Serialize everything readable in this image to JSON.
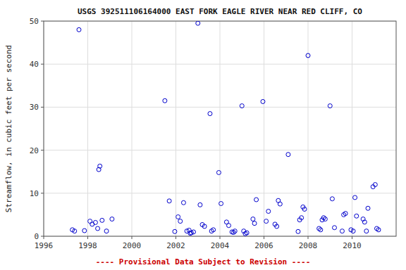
{
  "chart_data": {
    "type": "scatter",
    "title": "USGS 392511106164000 EAST FORK EAGLE RIVER NEAR RED CLIFF, CO",
    "y_label": "Streamflow, in cubic feet per second",
    "annotation": "---- Provisional Data Subject to Revision ----",
    "x": [
      1997.3,
      1997.4,
      1997.6,
      1997.85,
      1998.1,
      1998.2,
      1998.35,
      1998.45,
      1998.5,
      1998.55,
      1998.65,
      1998.85,
      1999.1,
      2001.5,
      2001.7,
      2001.95,
      2002.1,
      2002.2,
      2002.35,
      2002.5,
      2002.6,
      2002.65,
      2002.7,
      2002.8,
      2003.0,
      2003.1,
      2003.2,
      2003.3,
      2003.55,
      2003.62,
      2003.7,
      2003.95,
      2004.05,
      2004.3,
      2004.4,
      2004.55,
      2004.62,
      2004.68,
      2005.0,
      2005.08,
      2005.15,
      2005.22,
      2005.5,
      2005.57,
      2005.65,
      2005.95,
      2006.1,
      2006.2,
      2006.5,
      2006.58,
      2006.65,
      2006.73,
      2007.1,
      2007.55,
      2007.62,
      2007.7,
      2007.77,
      2007.84,
      2008.0,
      2008.5,
      2008.57,
      2008.64,
      2008.71,
      2008.78,
      2009.0,
      2009.1,
      2009.2,
      2009.55,
      2009.62,
      2009.7,
      2009.95,
      2010.05,
      2010.13,
      2010.2,
      2010.5,
      2010.57,
      2010.65,
      2010.72,
      2010.95,
      2011.05,
      2011.12,
      2011.2
    ],
    "values": [
      1.5,
      1.2,
      48.0,
      1.3,
      3.5,
      2.8,
      3.2,
      1.8,
      15.5,
      16.3,
      3.7,
      1.2,
      4.0,
      31.5,
      8.2,
      1.1,
      4.5,
      3.5,
      7.8,
      1.2,
      1.4,
      0.7,
      0.8,
      1.0,
      49.5,
      7.3,
      2.7,
      2.3,
      28.5,
      1.2,
      1.5,
      14.8,
      7.6,
      3.3,
      2.5,
      1.0,
      0.9,
      1.2,
      30.3,
      1.2,
      0.6,
      0.8,
      4.0,
      3.0,
      8.5,
      31.3,
      3.5,
      5.8,
      2.8,
      2.3,
      8.3,
      7.5,
      19.0,
      1.1,
      3.8,
      4.3,
      6.8,
      6.3,
      42.0,
      1.8,
      1.5,
      3.8,
      4.3,
      4.0,
      30.3,
      8.7,
      2.0,
      1.2,
      5.0,
      5.3,
      1.5,
      1.2,
      9.0,
      4.7,
      4.0,
      3.3,
      1.2,
      6.5,
      11.5,
      12.0,
      1.8,
      1.5
    ],
    "xlim": [
      1996,
      2012
    ],
    "ylim": [
      0,
      50
    ],
    "xticks": [
      1996,
      1998,
      2000,
      2002,
      2004,
      2006,
      2008,
      2010
    ],
    "yticks": [
      0,
      10,
      20,
      30,
      40,
      50
    ],
    "color": "#0000cc",
    "marker": "circle",
    "grid": true
  }
}
